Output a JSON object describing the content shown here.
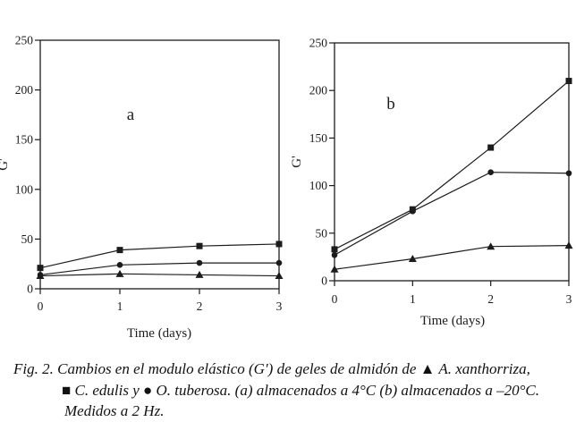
{
  "caption": {
    "line1": "Fig. 2. Cambios en el modulo elástico (G′) de geles de almidón de ▲ A. xanthorriza,",
    "line2": "■ C. edulis y ● O. tuberosa. (a) almacenados a 4°C (b) almacenados a –20°C.",
    "line3": "Medidos a 2 Hz."
  },
  "colors": {
    "ink": "#1c1c1c",
    "background": "#ffffff"
  },
  "chart_data": [
    {
      "type": "line",
      "panel": "a",
      "title": "",
      "xlabel": "Time (days)",
      "ylabel": "G'",
      "x": [
        0,
        1,
        2,
        3
      ],
      "xlim": [
        0,
        3
      ],
      "ylim": [
        0,
        250
      ],
      "yticks": [
        0,
        50,
        100,
        150,
        200,
        250
      ],
      "grid": false,
      "legend": "none (markers defined in figure caption)",
      "series": [
        {
          "name": "A. xanthorriza",
          "marker": "triangle",
          "values": [
            13,
            15,
            14,
            13
          ]
        },
        {
          "name": "O. tuberosa",
          "marker": "circle",
          "values": [
            14,
            24,
            26,
            26
          ]
        },
        {
          "name": "C. edulis",
          "marker": "square",
          "values": [
            21,
            39,
            43,
            45
          ]
        }
      ]
    },
    {
      "type": "line",
      "panel": "b",
      "title": "",
      "xlabel": "Time (days)",
      "ylabel": "G'",
      "x": [
        0,
        1,
        2,
        3
      ],
      "xlim": [
        0,
        3
      ],
      "ylim": [
        0,
        250
      ],
      "yticks": [
        0,
        50,
        100,
        150,
        200,
        250
      ],
      "grid": false,
      "legend": "none (markers defined in figure caption)",
      "series": [
        {
          "name": "A. xanthorriza",
          "marker": "triangle",
          "values": [
            12,
            23,
            36,
            37
          ]
        },
        {
          "name": "O. tuberosa",
          "marker": "circle",
          "values": [
            27,
            73,
            114,
            113
          ]
        },
        {
          "name": "C. edulis",
          "marker": "square",
          "values": [
            33,
            75,
            140,
            210
          ]
        }
      ]
    }
  ]
}
